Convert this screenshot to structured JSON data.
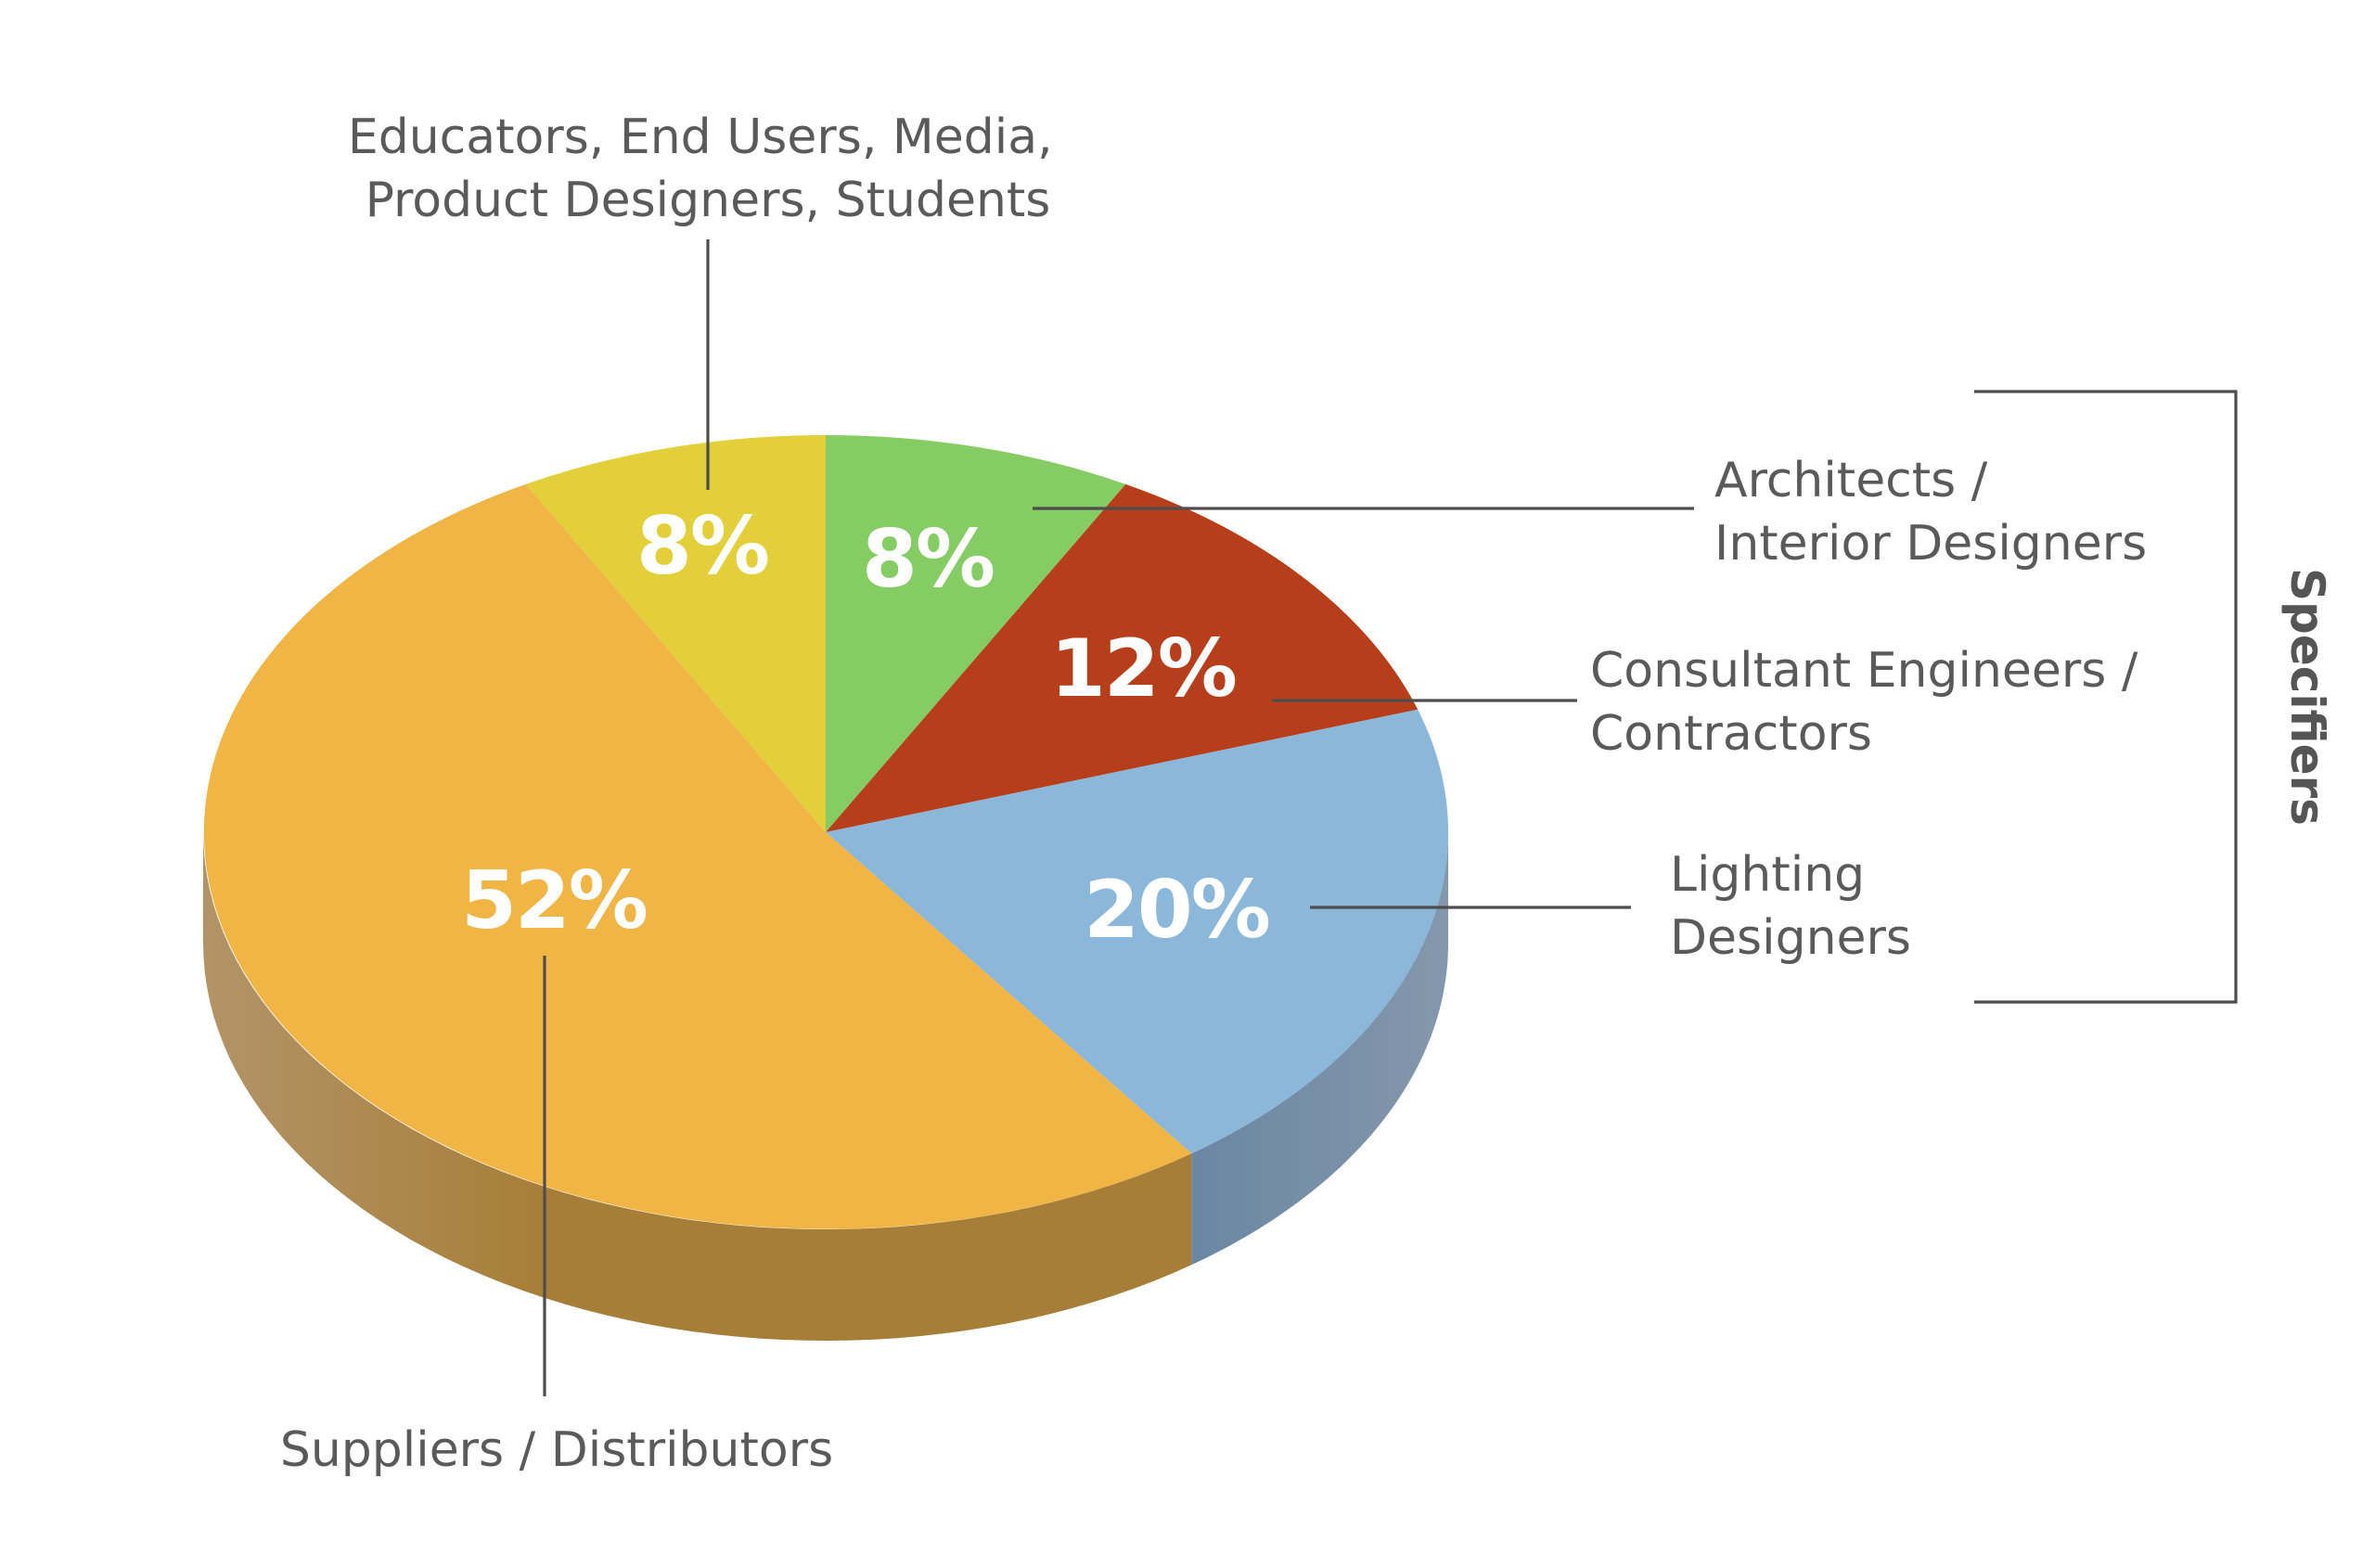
{
  "chart_data": {
    "type": "pie",
    "title": "",
    "slices": [
      {
        "label_lines": [
          "Educators, End Users, Media,",
          "Product Designers, Students"
        ],
        "value": 8,
        "value_label": "8%",
        "color": "#E3CF3A"
      },
      {
        "label_lines": [
          "Architects /",
          "Interior Designers"
        ],
        "value": 8,
        "value_label": "8%",
        "color": "#84CC63"
      },
      {
        "label_lines": [
          "Consultant Engineers /",
          "Contractors"
        ],
        "value": 12,
        "value_label": "12%",
        "color": "#B73E1B"
      },
      {
        "label_lines": [
          "Lighting",
          "Designers"
        ],
        "value": 20,
        "value_label": "20%",
        "color": "#8BB7DA"
      },
      {
        "label_lines": [
          "Suppliers / Distributors"
        ],
        "value": 52,
        "value_label": "52%",
        "color": "#F0B545"
      }
    ],
    "group": {
      "label": "Specifiers",
      "members": [
        "Architects / Interior Designers",
        "Consultant Engineers / Contractors",
        "Lighting Designers"
      ]
    },
    "style": "3d"
  }
}
